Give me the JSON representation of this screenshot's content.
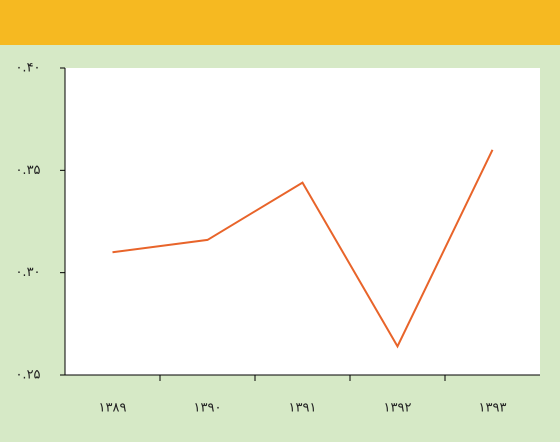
{
  "chart_data": {
    "type": "line",
    "categories": [
      "۱۳۸۹",
      "۱۳۹۰",
      "۱۳۹۱",
      "۱۳۹۲",
      "۱۳۹۳"
    ],
    "values": [
      0.31,
      0.316,
      0.344,
      0.264,
      0.36
    ],
    "color": "#e8642a",
    "ylim": [
      0.25,
      0.4
    ],
    "yticks": [
      {
        "value": 0.25,
        "label": "۰.۲۵"
      },
      {
        "value": 0.3,
        "label": "۰.۳۰"
      },
      {
        "value": 0.35,
        "label": "۰.۳۵"
      },
      {
        "value": 0.4,
        "label": "۰.۴۰"
      }
    ]
  }
}
